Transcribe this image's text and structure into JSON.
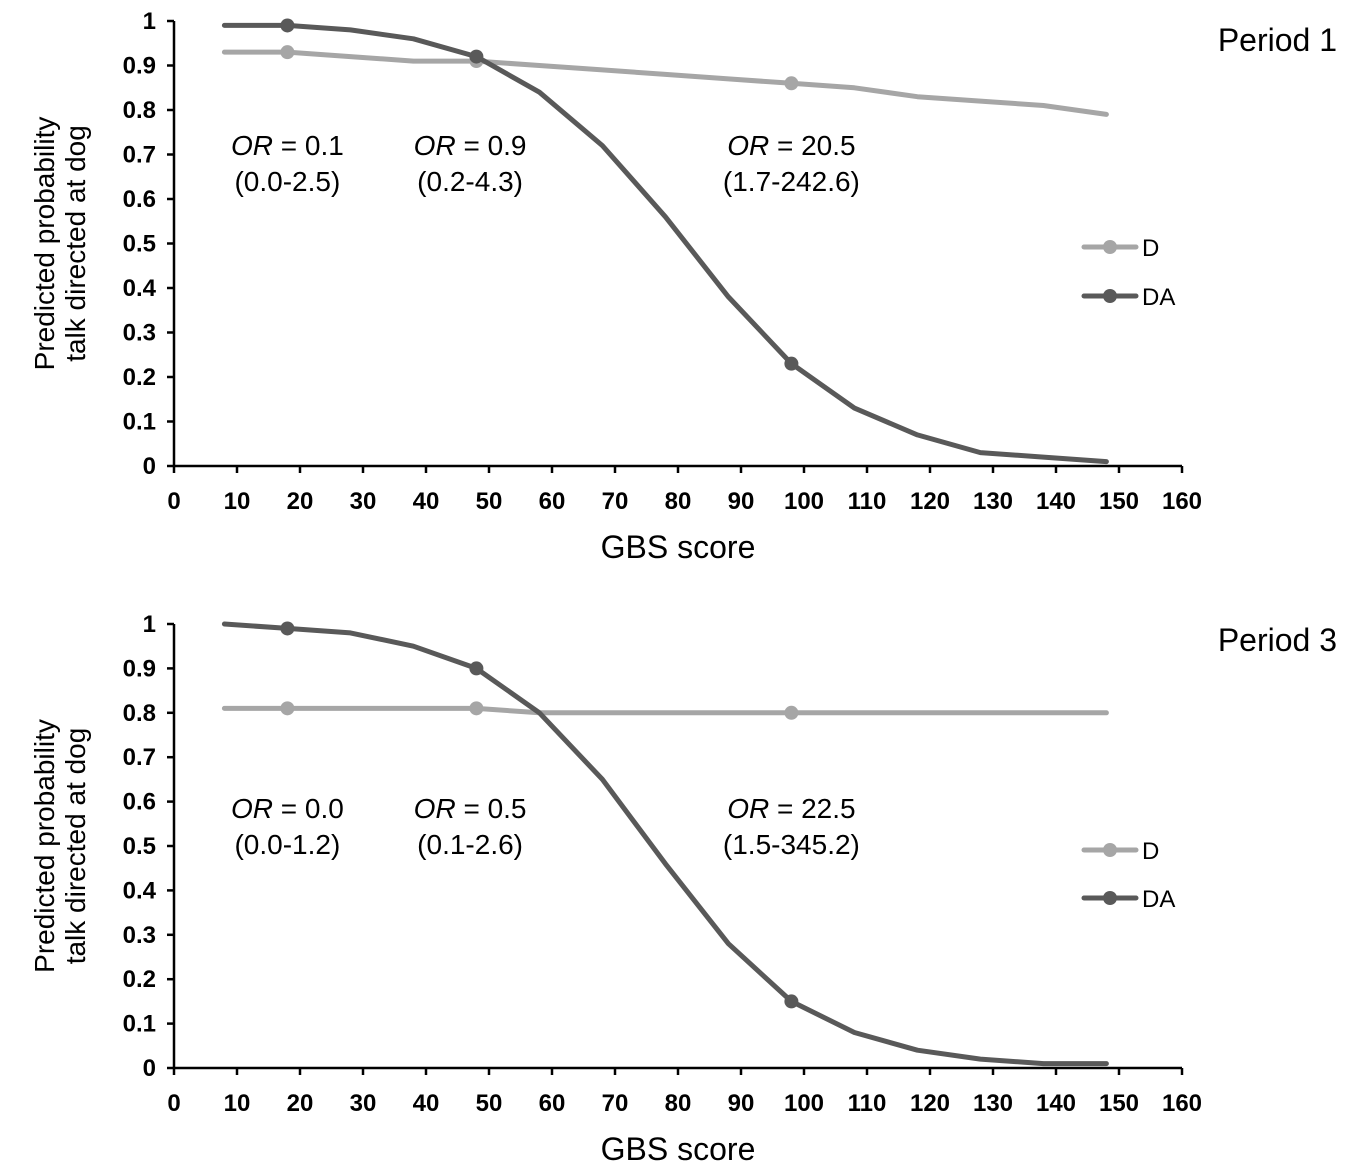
{
  "chart_data": [
    {
      "type": "line",
      "panel_label": "Period 1",
      "xlabel": "GBS score",
      "ylabel_lines": [
        "Predicted probability",
        "talk directed at dog"
      ],
      "xlim": [
        0,
        160
      ],
      "ylim": [
        0,
        1
      ],
      "xticks": [
        0,
        10,
        20,
        30,
        40,
        50,
        60,
        70,
        80,
        90,
        100,
        110,
        120,
        130,
        140,
        150,
        160
      ],
      "yticks": [
        0,
        0.1,
        0.2,
        0.3,
        0.4,
        0.5,
        0.6,
        0.7,
        0.8,
        0.9,
        1
      ],
      "ytick_labels": [
        "0",
        "0.1",
        "0.2",
        "0.3",
        "0.4",
        "0.5",
        "0.6",
        "0.7",
        "0.8",
        "0.9",
        "1"
      ],
      "grid": false,
      "legend": "right",
      "series": [
        {
          "name": "D",
          "color": "#a6a6a6",
          "x": [
            8,
            18,
            28,
            38,
            48,
            58,
            68,
            78,
            88,
            98,
            108,
            118,
            128,
            138,
            148
          ],
          "y": [
            0.93,
            0.93,
            0.92,
            0.91,
            0.91,
            0.9,
            0.89,
            0.88,
            0.87,
            0.86,
            0.85,
            0.83,
            0.82,
            0.81,
            0.79
          ],
          "markers_x": [
            18,
            48,
            98
          ]
        },
        {
          "name": "DA",
          "color": "#595959",
          "x": [
            8,
            18,
            28,
            38,
            48,
            58,
            68,
            78,
            88,
            98,
            108,
            118,
            128,
            138,
            148
          ],
          "y": [
            0.99,
            0.99,
            0.98,
            0.96,
            0.92,
            0.84,
            0.72,
            0.56,
            0.38,
            0.23,
            0.13,
            0.07,
            0.03,
            0.02,
            0.01
          ],
          "markers_x": [
            18,
            48,
            98
          ]
        }
      ],
      "annotations": [
        {
          "italic": "OR",
          "rest": " = 0.1",
          "ci": "(0.0-2.5)",
          "x": 18
        },
        {
          "italic": "OR",
          "rest": " = 0.9",
          "ci": "(0.2-4.3)",
          "x": 47
        },
        {
          "italic": "OR",
          "rest": " = 20.5",
          "ci": "(1.7-242.6)",
          "x": 98
        }
      ]
    },
    {
      "type": "line",
      "panel_label": "Period 3",
      "xlabel": "GBS score",
      "ylabel_lines": [
        "Predicted probability",
        "talk directed at dog"
      ],
      "xlim": [
        0,
        160
      ],
      "ylim": [
        0,
        1
      ],
      "xticks": [
        0,
        10,
        20,
        30,
        40,
        50,
        60,
        70,
        80,
        90,
        100,
        110,
        120,
        130,
        140,
        150,
        160
      ],
      "yticks": [
        0,
        0.1,
        0.2,
        0.3,
        0.4,
        0.5,
        0.6,
        0.7,
        0.8,
        0.9,
        1
      ],
      "ytick_labels": [
        "0",
        "0.1",
        "0.2",
        "0.3",
        "0.4",
        "0.5",
        "0.6",
        "0.7",
        "0.8",
        "0.9",
        "1"
      ],
      "grid": false,
      "legend": "right",
      "series": [
        {
          "name": "D",
          "color": "#a6a6a6",
          "x": [
            8,
            18,
            28,
            38,
            48,
            58,
            68,
            78,
            88,
            98,
            108,
            118,
            128,
            138,
            148
          ],
          "y": [
            0.81,
            0.81,
            0.81,
            0.81,
            0.81,
            0.8,
            0.8,
            0.8,
            0.8,
            0.8,
            0.8,
            0.8,
            0.8,
            0.8,
            0.8
          ],
          "markers_x": [
            18,
            48,
            98
          ]
        },
        {
          "name": "DA",
          "color": "#595959",
          "x": [
            8,
            18,
            28,
            38,
            48,
            58,
            68,
            78,
            88,
            98,
            108,
            118,
            128,
            138,
            148
          ],
          "y": [
            1.0,
            0.99,
            0.98,
            0.95,
            0.9,
            0.8,
            0.65,
            0.46,
            0.28,
            0.15,
            0.08,
            0.04,
            0.02,
            0.01,
            0.01
          ],
          "markers_x": [
            18,
            48,
            98
          ]
        }
      ],
      "annotations": [
        {
          "italic": "OR",
          "rest": " = 0.0",
          "ci": "(0.0-1.2)",
          "x": 18
        },
        {
          "italic": "OR",
          "rest": " = 0.5",
          "ci": "(0.1-2.6)",
          "x": 47
        },
        {
          "italic": "OR",
          "rest": " = 22.5",
          "ci": "(1.5-345.2)",
          "x": 98
        }
      ]
    }
  ]
}
